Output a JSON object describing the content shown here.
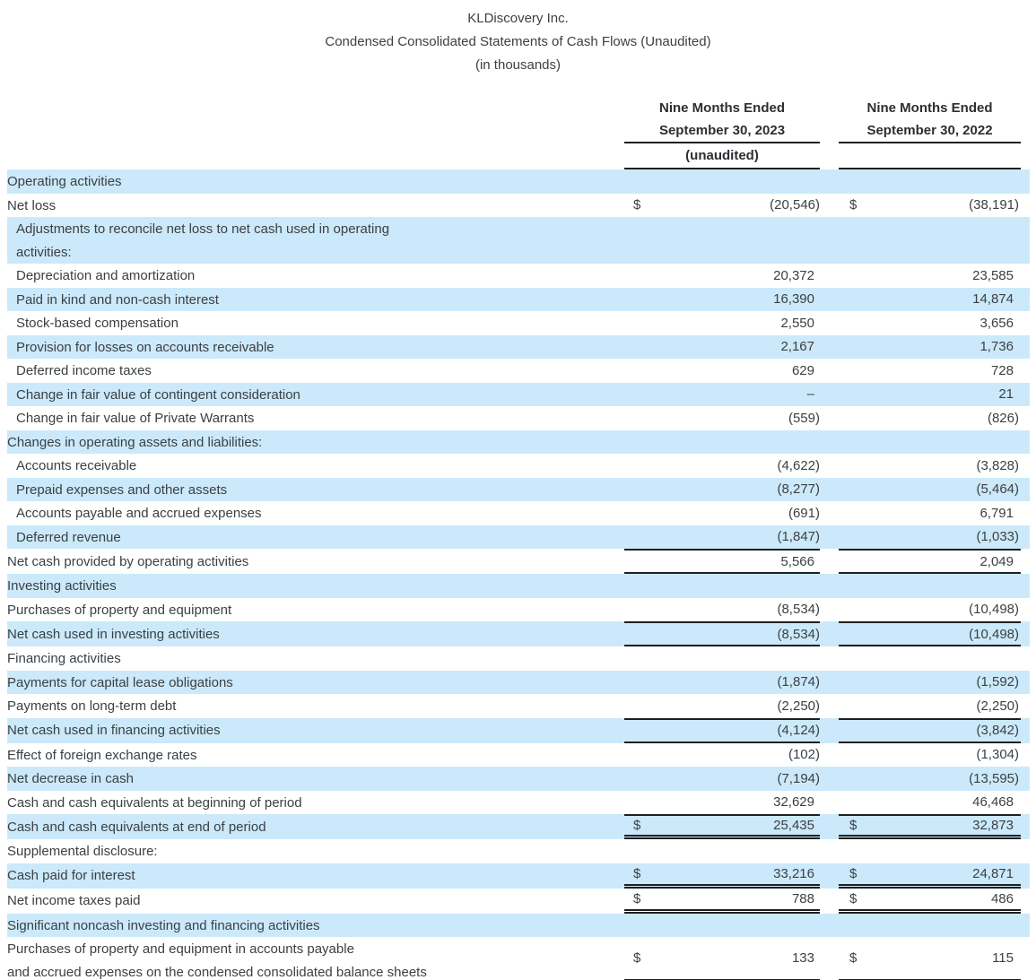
{
  "title": {
    "company": "KLDiscovery Inc.",
    "statement": "Condensed Consolidated Statements of Cash Flows (Unaudited)",
    "units": "(in thousands)"
  },
  "columns": [
    {
      "line1": "Nine Months Ended",
      "line2": "September 30, 2023",
      "note": "(unaudited)"
    },
    {
      "line1": "Nine Months Ended",
      "line2": "September 30, 2022",
      "note": ""
    }
  ],
  "colors": {
    "row_highlight": "#cbe9fb",
    "text": "#3c4043",
    "rule": "#1f1f1f"
  },
  "rows": [
    {
      "label": [
        "Operating activities"
      ],
      "shade": true
    },
    {
      "label": [
        "Net loss"
      ],
      "d1": "$",
      "v1": "(20,546)",
      "d2": "$",
      "v2": "(38,191)"
    },
    {
      "label": [
        "Adjustments to reconcile net loss to net cash used in operating",
        "activities:"
      ],
      "indent": true,
      "shade": true
    },
    {
      "label": [
        "Depreciation and amortization"
      ],
      "indent": true,
      "v1": "20,372",
      "v2": "23,585"
    },
    {
      "label": [
        "Paid in kind and non-cash interest"
      ],
      "indent": true,
      "shade": true,
      "v1": "16,390",
      "v2": "14,874"
    },
    {
      "label": [
        "Stock-based compensation"
      ],
      "indent": true,
      "v1": "2,550",
      "v2": "3,656"
    },
    {
      "label": [
        "Provision for losses on accounts receivable"
      ],
      "indent": true,
      "shade": true,
      "v1": "2,167",
      "v2": "1,736"
    },
    {
      "label": [
        "Deferred income taxes"
      ],
      "indent": true,
      "v1": "629",
      "v2": "728"
    },
    {
      "label": [
        "Change in fair value of contingent consideration"
      ],
      "indent": true,
      "shade": true,
      "v1": "–",
      "v2": "21"
    },
    {
      "label": [
        "Change in fair value of Private Warrants"
      ],
      "indent": true,
      "v1": "(559)",
      "v2": "(826)"
    },
    {
      "label": [
        "Changes in operating assets and liabilities:"
      ],
      "shade": true
    },
    {
      "label": [
        "Accounts receivable"
      ],
      "indent": true,
      "v1": "(4,622)",
      "v2": "(3,828)"
    },
    {
      "label": [
        "Prepaid expenses and other assets"
      ],
      "indent": true,
      "shade": true,
      "v1": "(8,277)",
      "v2": "(5,464)"
    },
    {
      "label": [
        "Accounts payable and accrued expenses"
      ],
      "indent": true,
      "v1": "(691)",
      "v2": "6,791"
    },
    {
      "label": [
        "Deferred revenue"
      ],
      "indent": true,
      "shade": true,
      "v1": "(1,847)",
      "v2": "(1,033)"
    },
    {
      "label": [
        "Net cash provided by operating activities"
      ],
      "v1": "5,566",
      "v2": "2,049",
      "lines": "lt lb"
    },
    {
      "label": [
        "Investing activities"
      ],
      "shade": true
    },
    {
      "label": [
        "Purchases of property and equipment"
      ],
      "v1": "(8,534)",
      "v2": "(10,498)"
    },
    {
      "label": [
        "Net cash used in investing activities"
      ],
      "shade": true,
      "v1": "(8,534)",
      "v2": "(10,498)",
      "lines": "lt lb"
    },
    {
      "label": [
        "Financing activities"
      ]
    },
    {
      "label": [
        "Payments for capital lease obligations"
      ],
      "shade": true,
      "v1": "(1,874)",
      "v2": "(1,592)"
    },
    {
      "label": [
        "Payments on long-term debt"
      ],
      "v1": "(2,250)",
      "v2": "(2,250)"
    },
    {
      "label": [
        "Net cash used in financing activities"
      ],
      "shade": true,
      "v1": "(4,124)",
      "v2": "(3,842)",
      "lines": "lt lb"
    },
    {
      "label": [
        "Effect of foreign exchange rates"
      ],
      "v1": "(102)",
      "v2": "(1,304)"
    },
    {
      "label": [
        "Net decrease in cash"
      ],
      "shade": true,
      "v1": "(7,194)",
      "v2": "(13,595)"
    },
    {
      "label": [
        "Cash and cash equivalents at beginning of period"
      ],
      "v1": "32,629",
      "v2": "46,468"
    },
    {
      "label": [
        "Cash and cash equivalents at end of period"
      ],
      "shade": true,
      "d1": "$",
      "v1": "25,435",
      "d2": "$",
      "v2": "32,873",
      "lines": "lt ldb"
    },
    {
      "label": [
        "Supplemental disclosure:"
      ]
    },
    {
      "label": [
        "Cash paid for interest"
      ],
      "shade": true,
      "d1": "$",
      "v1": "33,216",
      "d2": "$",
      "v2": "24,871",
      "lines": "ldb"
    },
    {
      "label": [
        "Net income taxes paid"
      ],
      "d1": "$",
      "v1": "788",
      "d2": "$",
      "v2": "486",
      "lines": "ldb"
    },
    {
      "label": [
        "Significant noncash investing and financing activities"
      ],
      "shade": true
    },
    {
      "label": [
        "Purchases of property and equipment in accounts payable",
        "and accrued expenses on the condensed consolidated balance sheets"
      ],
      "d1": "$",
      "v1": "133",
      "d2": "$",
      "v2": "115",
      "lines": "ldb"
    }
  ]
}
